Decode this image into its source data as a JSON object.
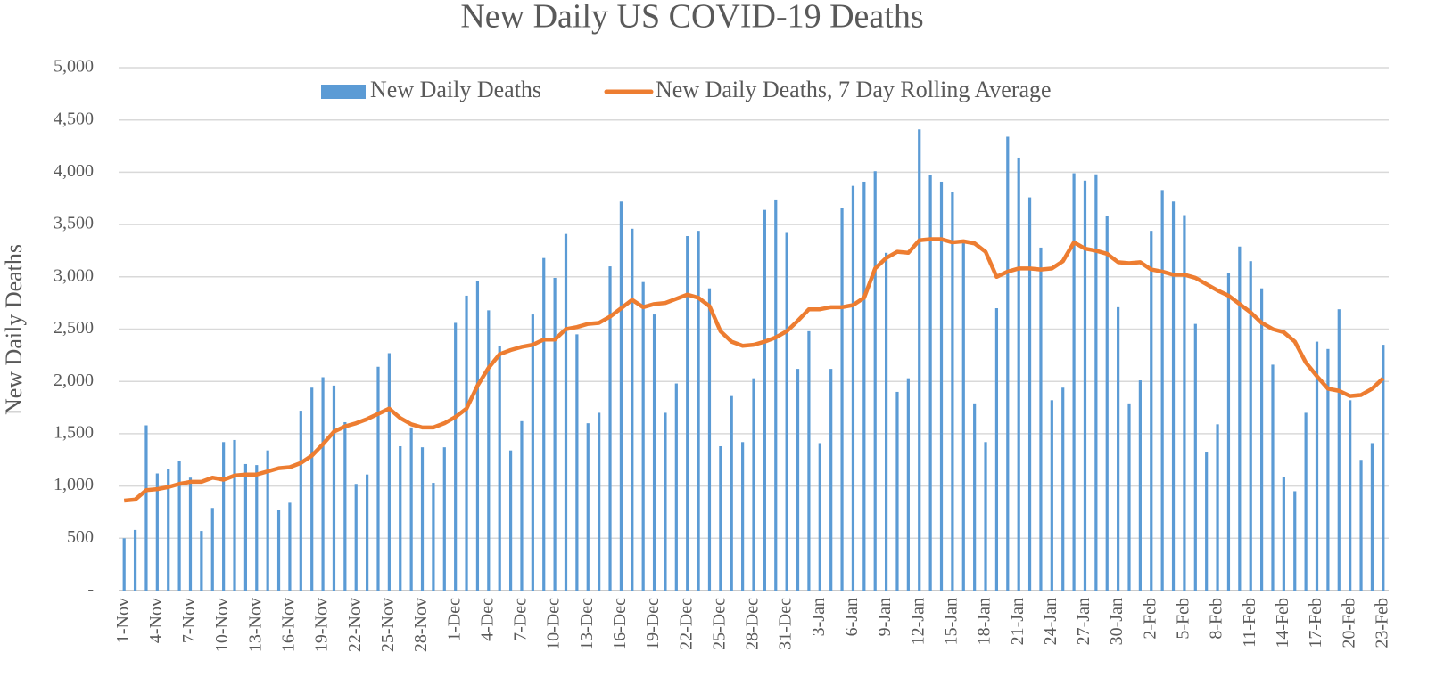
{
  "chart_data": {
    "type": "bar_line",
    "title": "New Daily US COVID-19 Deaths",
    "y_label": "New Daily Deaths",
    "categories": [
      "1-Nov",
      null,
      null,
      "4-Nov",
      null,
      null,
      "7-Nov",
      null,
      null,
      "10-Nov",
      null,
      null,
      "13-Nov",
      null,
      null,
      "16-Nov",
      null,
      null,
      "19-Nov",
      null,
      null,
      "22-Nov",
      null,
      null,
      "25-Nov",
      null,
      null,
      "28-Nov",
      null,
      null,
      "1-Dec",
      null,
      null,
      "4-Dec",
      null,
      null,
      "7-Dec",
      null,
      null,
      "10-Dec",
      null,
      null,
      "13-Dec",
      null,
      null,
      "16-Dec",
      null,
      null,
      "19-Dec",
      null,
      null,
      "22-Dec",
      null,
      null,
      "25-Dec",
      null,
      null,
      "28-Dec",
      null,
      null,
      "31-Dec",
      null,
      null,
      "3-Jan",
      null,
      null,
      "6-Jan",
      null,
      null,
      "9-Jan",
      null,
      null,
      "12-Jan",
      null,
      null,
      "15-Jan",
      null,
      null,
      "18-Jan",
      null,
      null,
      "21-Jan",
      null,
      null,
      "24-Jan",
      null,
      null,
      "27-Jan",
      null,
      null,
      "30-Jan",
      null,
      null,
      "2-Feb",
      null,
      null,
      "5-Feb",
      null,
      null,
      "8-Feb",
      null,
      null,
      "11-Feb",
      null,
      null,
      "14-Feb",
      null,
      null,
      "17-Feb",
      null,
      null,
      "20-Feb",
      null,
      null,
      "23-Feb"
    ],
    "series": [
      {
        "name": "New Daily Deaths",
        "kind": "bar",
        "color": "#5b9bd5",
        "values": [
          500,
          580,
          1580,
          1120,
          1160,
          1240,
          1080,
          570,
          790,
          1420,
          1440,
          1210,
          1200,
          1340,
          770,
          840,
          1720,
          1940,
          2040,
          1960,
          1610,
          1020,
          1110,
          2140,
          2270,
          1380,
          1560,
          1370,
          1030,
          1370,
          2560,
          2820,
          2960,
          2680,
          2340,
          1340,
          1620,
          2640,
          3180,
          2990,
          3410,
          2450,
          1600,
          1700,
          3100,
          3720,
          3460,
          2950,
          2640,
          1700,
          1980,
          3390,
          3440,
          2890,
          1380,
          1860,
          1420,
          2030,
          3640,
          3740,
          3420,
          2120,
          2480,
          1410,
          2120,
          3660,
          3870,
          3910,
          4010,
          3230,
          1900,
          2030,
          4410,
          3970,
          3910,
          3810,
          3330,
          1790,
          1420,
          2700,
          4340,
          4140,
          3760,
          3280,
          1820,
          1940,
          3990,
          3920,
          3980,
          3580,
          2710,
          1790,
          2010,
          3440,
          3830,
          3720,
          3590,
          2550,
          1320,
          1590,
          3040,
          3290,
          3150,
          2890,
          2160,
          1090,
          950,
          1700,
          2380,
          2310,
          2690,
          1820,
          1250,
          1410,
          2350
        ]
      },
      {
        "name": "New Daily Deaths, 7 Day Rolling Average",
        "kind": "line",
        "color": "#ed7d31",
        "values": [
          860,
          870,
          960,
          970,
          990,
          1020,
          1040,
          1040,
          1080,
          1060,
          1100,
          1110,
          1110,
          1140,
          1170,
          1180,
          1220,
          1290,
          1400,
          1520,
          1570,
          1600,
          1640,
          1690,
          1740,
          1650,
          1590,
          1560,
          1560,
          1600,
          1660,
          1740,
          1960,
          2130,
          2260,
          2300,
          2330,
          2350,
          2400,
          2400,
          2500,
          2520,
          2550,
          2560,
          2620,
          2700,
          2780,
          2710,
          2740,
          2750,
          2790,
          2830,
          2800,
          2720,
          2480,
          2380,
          2340,
          2350,
          2380,
          2420,
          2480,
          2580,
          2690,
          2690,
          2710,
          2710,
          2730,
          2800,
          3080,
          3180,
          3240,
          3230,
          3350,
          3360,
          3360,
          3330,
          3340,
          3320,
          3240,
          3000,
          3050,
          3080,
          3080,
          3070,
          3080,
          3150,
          3330,
          3270,
          3250,
          3220,
          3140,
          3130,
          3140,
          3070,
          3050,
          3020,
          3020,
          2990,
          2930,
          2870,
          2820,
          2740,
          2660,
          2560,
          2500,
          2470,
          2380,
          2180,
          2050,
          1930,
          1910,
          1860,
          1870,
          1930,
          2030
        ]
      }
    ],
    "ylim": [
      0,
      5000
    ],
    "yticks": [
      {
        "value": 0,
        "label": "-"
      },
      500,
      {
        "value": 1000,
        "label": "1,000"
      },
      {
        "value": 1500,
        "label": "1,500"
      },
      {
        "value": 2000,
        "label": "2,000"
      },
      {
        "value": 2500,
        "label": "2,500"
      },
      {
        "value": 3000,
        "label": "3,000"
      },
      {
        "value": 3500,
        "label": "3,500"
      },
      {
        "value": 4000,
        "label": "4,000"
      },
      {
        "value": 4500,
        "label": "4,500"
      },
      {
        "value": 5000,
        "label": "5,000"
      }
    ],
    "grid": true,
    "legend": "top"
  }
}
